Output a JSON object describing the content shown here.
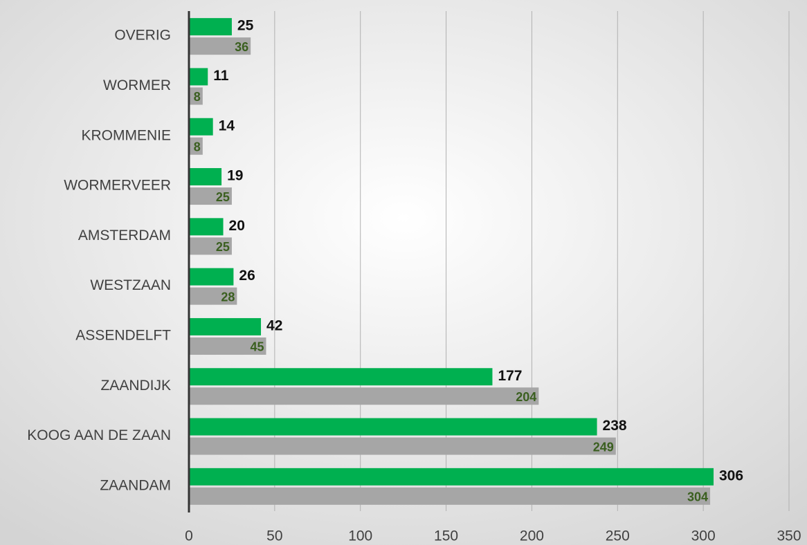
{
  "chart_data": {
    "type": "bar",
    "orientation": "horizontal",
    "categories": [
      "OVERIG",
      "WORMER",
      "KROMMENIE",
      "WORMERVEER",
      "AMSTERDAM",
      "WESTZAAN",
      "ASSENDELFT",
      "ZAANDIJK",
      "KOOG AAN DE ZAAN",
      "ZAANDAM"
    ],
    "series": [
      {
        "color": "#00b050",
        "values": [
          25,
          11,
          14,
          19,
          20,
          26,
          42,
          177,
          238,
          306
        ]
      },
      {
        "color": "#a6a6a6",
        "values": [
          36,
          8,
          8,
          25,
          25,
          28,
          45,
          204,
          249,
          304
        ]
      }
    ],
    "xlim": [
      0,
      350
    ],
    "xticks": [
      0,
      50,
      100,
      150,
      200,
      250,
      300,
      350
    ],
    "grid": true
  }
}
